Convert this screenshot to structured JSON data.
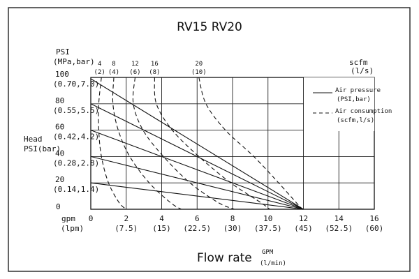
{
  "chart_data": {
    "type": "line",
    "title": "RV15 RV20",
    "y_axis": {
      "unit_top": "PSI",
      "unit_bottom": "(MPa,bar)",
      "name_line1": "Head",
      "name_line2": "PSI(bar)",
      "range": [
        0,
        100
      ],
      "ticks": [
        {
          "value": 100,
          "psi": "100",
          "metric": "(0.70,7.0)"
        },
        {
          "value": 80,
          "psi": "80",
          "metric": "(0.55,5.5)"
        },
        {
          "value": 60,
          "psi": "60",
          "metric": "(0.42,4.2)"
        },
        {
          "value": 40,
          "psi": "40",
          "metric": "(0.28,2.8)"
        },
        {
          "value": 20,
          "psi": "20",
          "metric": "(0.14,1.4)"
        },
        {
          "value": 0,
          "psi": "0",
          "metric": ""
        }
      ]
    },
    "x_axis": {
      "unit_top": "gpm",
      "unit_bottom": "(lpm)",
      "label": "Flow rate",
      "label_unit_top": "GPM",
      "label_unit_bottom": "(l/min)",
      "range": [
        0,
        16
      ],
      "ticks": [
        {
          "value": 0,
          "gpm": "0",
          "lpm": ""
        },
        {
          "value": 2,
          "gpm": "2",
          "lpm": "(7.5)"
        },
        {
          "value": 4,
          "gpm": "4",
          "lpm": "(15)"
        },
        {
          "value": 6,
          "gpm": "6",
          "lpm": "(22.5)"
        },
        {
          "value": 8,
          "gpm": "8",
          "lpm": "(30)"
        },
        {
          "value": 10,
          "gpm": "10",
          "lpm": "(37.5)"
        },
        {
          "value": 12,
          "gpm": "12",
          "lpm": "(45)"
        },
        {
          "value": 14,
          "gpm": "14",
          "lpm": "(52.5)"
        },
        {
          "value": 16,
          "gpm": "16",
          "lpm": "(60)"
        }
      ]
    },
    "top_scale": {
      "unit_top": "scfm",
      "unit_bottom": "(l/s)",
      "ticks": [
        {
          "gpm": 0.5,
          "scfm": "4",
          "ls": "(2)"
        },
        {
          "gpm": 1.3,
          "scfm": "8",
          "ls": "(4)"
        },
        {
          "gpm": 2.5,
          "scfm": "12",
          "ls": "(6)"
        },
        {
          "gpm": 3.6,
          "scfm": "16",
          "ls": "(8)"
        },
        {
          "gpm": 6.1,
          "scfm": "20",
          "ls": "(10)"
        }
      ]
    },
    "legend": {
      "placement": "top-right",
      "solid_line1": "Air pressure",
      "solid_line2": "(PSI,bar)",
      "dashed_line1": "Air consumption",
      "dashed_line2": "(scfm,l/s)"
    },
    "grid": true,
    "air_pressure_curves": [
      {
        "points": [
          [
            0,
            99
          ],
          [
            12,
            0
          ]
        ]
      },
      {
        "points": [
          [
            0,
            80
          ],
          [
            12,
            0
          ]
        ]
      },
      {
        "points": [
          [
            0,
            60
          ],
          [
            12,
            0
          ]
        ]
      },
      {
        "points": [
          [
            0,
            40
          ],
          [
            12,
            0
          ]
        ]
      },
      {
        "points": [
          [
            0,
            20
          ],
          [
            12,
            0
          ]
        ]
      }
    ],
    "air_consumption_curves": [
      {
        "points": [
          [
            0.6,
            100
          ],
          [
            0.45,
            80
          ],
          [
            0.45,
            60
          ],
          [
            0.6,
            40
          ],
          [
            1.0,
            20
          ],
          [
            1.6,
            5
          ],
          [
            2.0,
            0
          ]
        ]
      },
      {
        "points": [
          [
            1.3,
            100
          ],
          [
            1.25,
            80
          ],
          [
            1.55,
            60
          ],
          [
            2.2,
            40
          ],
          [
            3.3,
            20
          ],
          [
            4.5,
            5
          ],
          [
            5.1,
            0
          ]
        ]
      },
      {
        "points": [
          [
            2.5,
            100
          ],
          [
            2.4,
            80
          ],
          [
            2.95,
            60
          ],
          [
            4.1,
            40
          ],
          [
            5.6,
            20
          ],
          [
            7.2,
            5
          ],
          [
            8.1,
            0
          ]
        ]
      },
      {
        "points": [
          [
            3.6,
            100
          ],
          [
            3.7,
            80
          ],
          [
            4.6,
            60
          ],
          [
            6.1,
            40
          ],
          [
            7.9,
            20
          ],
          [
            9.6,
            5
          ],
          [
            10.1,
            0
          ]
        ]
      },
      {
        "points": [
          [
            6.1,
            100
          ],
          [
            6.5,
            80
          ],
          [
            7.6,
            60
          ],
          [
            9.2,
            40
          ],
          [
            10.6,
            20
          ],
          [
            11.8,
            2
          ],
          [
            12.0,
            0
          ]
        ]
      }
    ]
  }
}
